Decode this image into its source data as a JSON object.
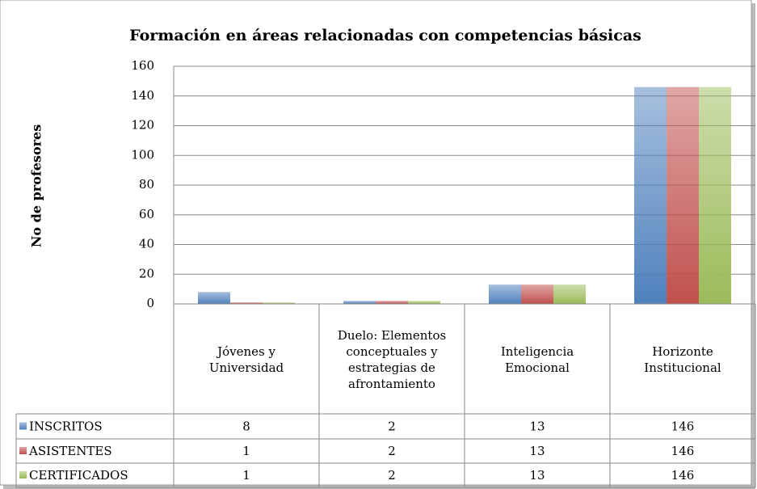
{
  "chart_data": {
    "type": "bar",
    "title": "Formación en áreas relacionadas con competencias básicas",
    "y_label": "No de profesores",
    "categories": [
      "Jóvenes y Universidad",
      "Duelo: Elementos conceptuales y estrategias de afrontamiento",
      "Inteligencia Emocional",
      "Horizonte Institucional"
    ],
    "series": [
      {
        "name": "INSCRITOS",
        "color": "#4f81bd",
        "values": [
          8,
          2,
          13,
          146
        ]
      },
      {
        "name": "ASISTENTES",
        "color": "#c0504d",
        "values": [
          1,
          2,
          13,
          146
        ]
      },
      {
        "name": "CERTIFICADOS",
        "color": "#9bbb59",
        "values": [
          1,
          2,
          13,
          146
        ]
      }
    ],
    "ylim": [
      0,
      160
    ],
    "yticks": [
      0,
      20,
      40,
      60,
      80,
      100,
      120,
      140,
      160
    ],
    "grid": true,
    "data_table": true
  }
}
